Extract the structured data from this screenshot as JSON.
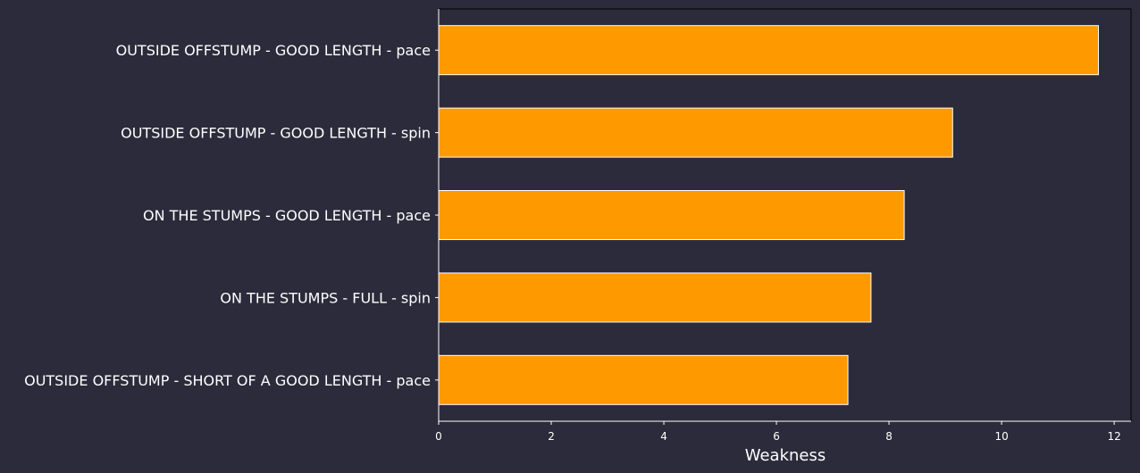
{
  "chart_data": {
    "type": "bar",
    "orientation": "horizontal",
    "categories": [
      "OUTSIDE OFFSTUMP - GOOD LENGTH - pace",
      "OUTSIDE OFFSTUMP - GOOD LENGTH - spin",
      "ON THE STUMPS - GOOD LENGTH - pace",
      "ON THE STUMPS - FULL - spin",
      "OUTSIDE OFFSTUMP - SHORT OF A GOOD LENGTH - pace"
    ],
    "values": [
      11.72,
      9.13,
      8.27,
      7.68,
      7.27
    ],
    "title": "",
    "xlabel": "Weakness",
    "ylabel": "",
    "xlim": [
      0,
      12.3
    ],
    "xticks": [
      0,
      2,
      4,
      6,
      8,
      10,
      12
    ],
    "grid": false,
    "legend": "none"
  },
  "colors": {
    "background": "#2b2b3b",
    "bar_fill": "#ff9900",
    "bar_edge": "#ffffff",
    "axis": "#000000",
    "text": "#ffffff"
  }
}
